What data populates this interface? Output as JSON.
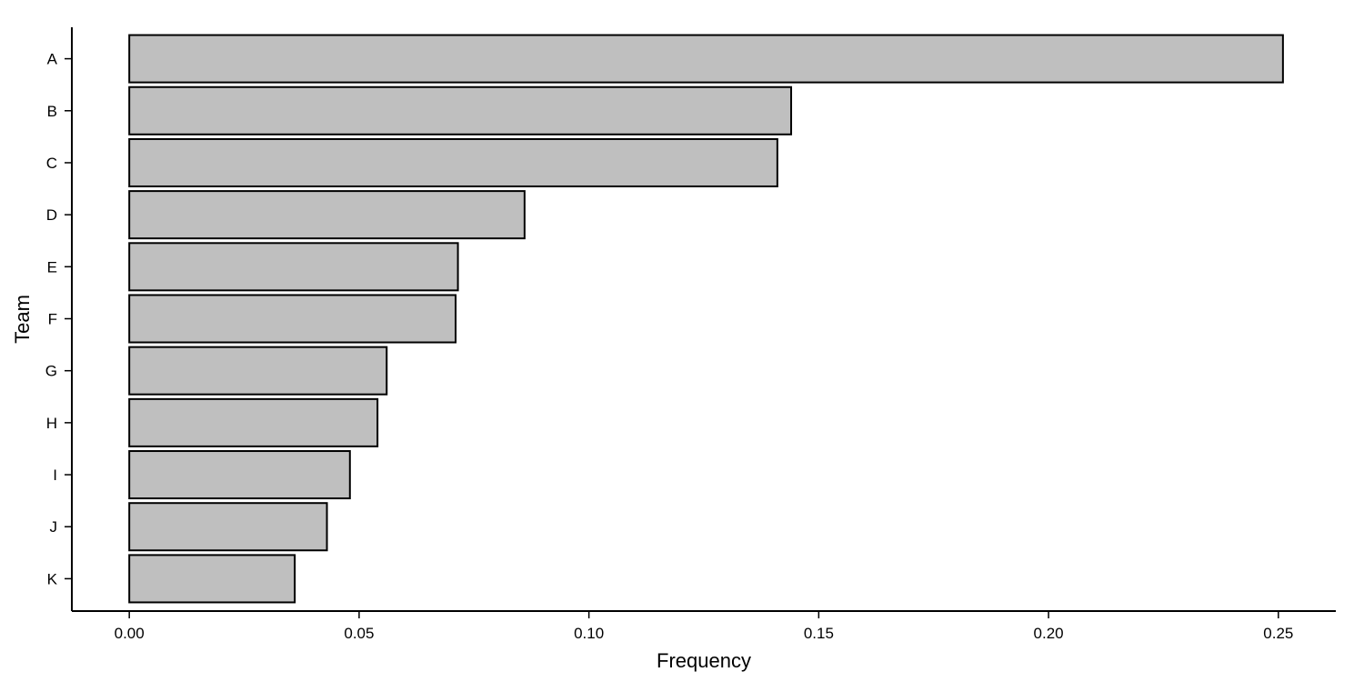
{
  "chart_data": {
    "type": "bar",
    "orientation": "horizontal",
    "title": "",
    "xlabel": "Frequency",
    "ylabel": "Team",
    "categories": [
      "A",
      "B",
      "C",
      "D",
      "E",
      "F",
      "G",
      "H",
      "I",
      "J",
      "K"
    ],
    "values": [
      0.251,
      0.144,
      0.141,
      0.086,
      0.0715,
      0.071,
      0.056,
      0.054,
      0.048,
      0.043,
      0.036
    ],
    "xlim": [
      -0.0125,
      0.2625
    ],
    "xticks": [
      "0.00",
      "0.05",
      "0.10",
      "0.15",
      "0.20",
      "0.25"
    ],
    "xtick_values": [
      0,
      0.05,
      0.1,
      0.15,
      0.2,
      0.25
    ],
    "grid": false,
    "legend": "none",
    "colors": {
      "bar_fill": "#bfbfbf",
      "bar_stroke": "#000000"
    }
  }
}
